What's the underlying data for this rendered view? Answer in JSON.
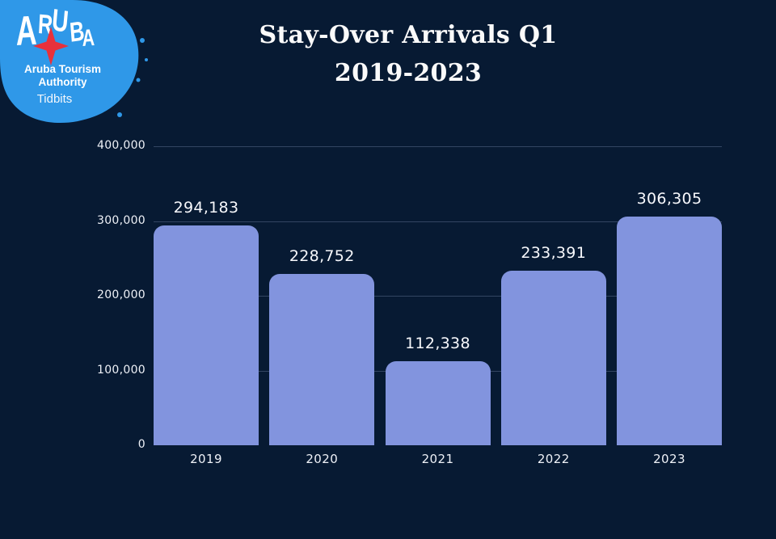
{
  "window": {
    "background": "#071a33"
  },
  "logo": {
    "blob_color": "#2f98e8",
    "wordmark_letters": [
      "A",
      "R",
      "U",
      "B",
      "A"
    ],
    "star_color": "#e8313b",
    "org_name_line1": "Aruba Tourism",
    "org_name_line2": "Authority",
    "tagline": "Tidbits"
  },
  "chart_data": {
    "type": "bar",
    "title": "Stay-Over Arrivals Q1 2019-2023",
    "title_lines": [
      "Stay-Over Arrivals Q1",
      "2019-2023"
    ],
    "categories": [
      "2019",
      "2020",
      "2021",
      "2022",
      "2023"
    ],
    "values": [
      294183,
      228752,
      112338,
      233391,
      306305
    ],
    "value_labels": [
      "294,183",
      "228,752",
      "112,338",
      "233,391",
      "306,305"
    ],
    "xlabel": "",
    "ylabel": "",
    "ylim": [
      0,
      400000
    ],
    "y_ticks": [
      {
        "value": 400000,
        "label": "400,000"
      },
      {
        "value": 300000,
        "label": "300,000"
      },
      {
        "value": 200000,
        "label": "200,000"
      },
      {
        "value": 100000,
        "label": "100,000"
      },
      {
        "value": 0,
        "label": "0"
      }
    ],
    "grid": true,
    "legend_position": "none",
    "bar_color": "#8294de",
    "tick_label_color": "#eef1f7",
    "value_label_color": "#f7f8fc",
    "gridline_color": "rgba(164,183,222,0.28)"
  }
}
